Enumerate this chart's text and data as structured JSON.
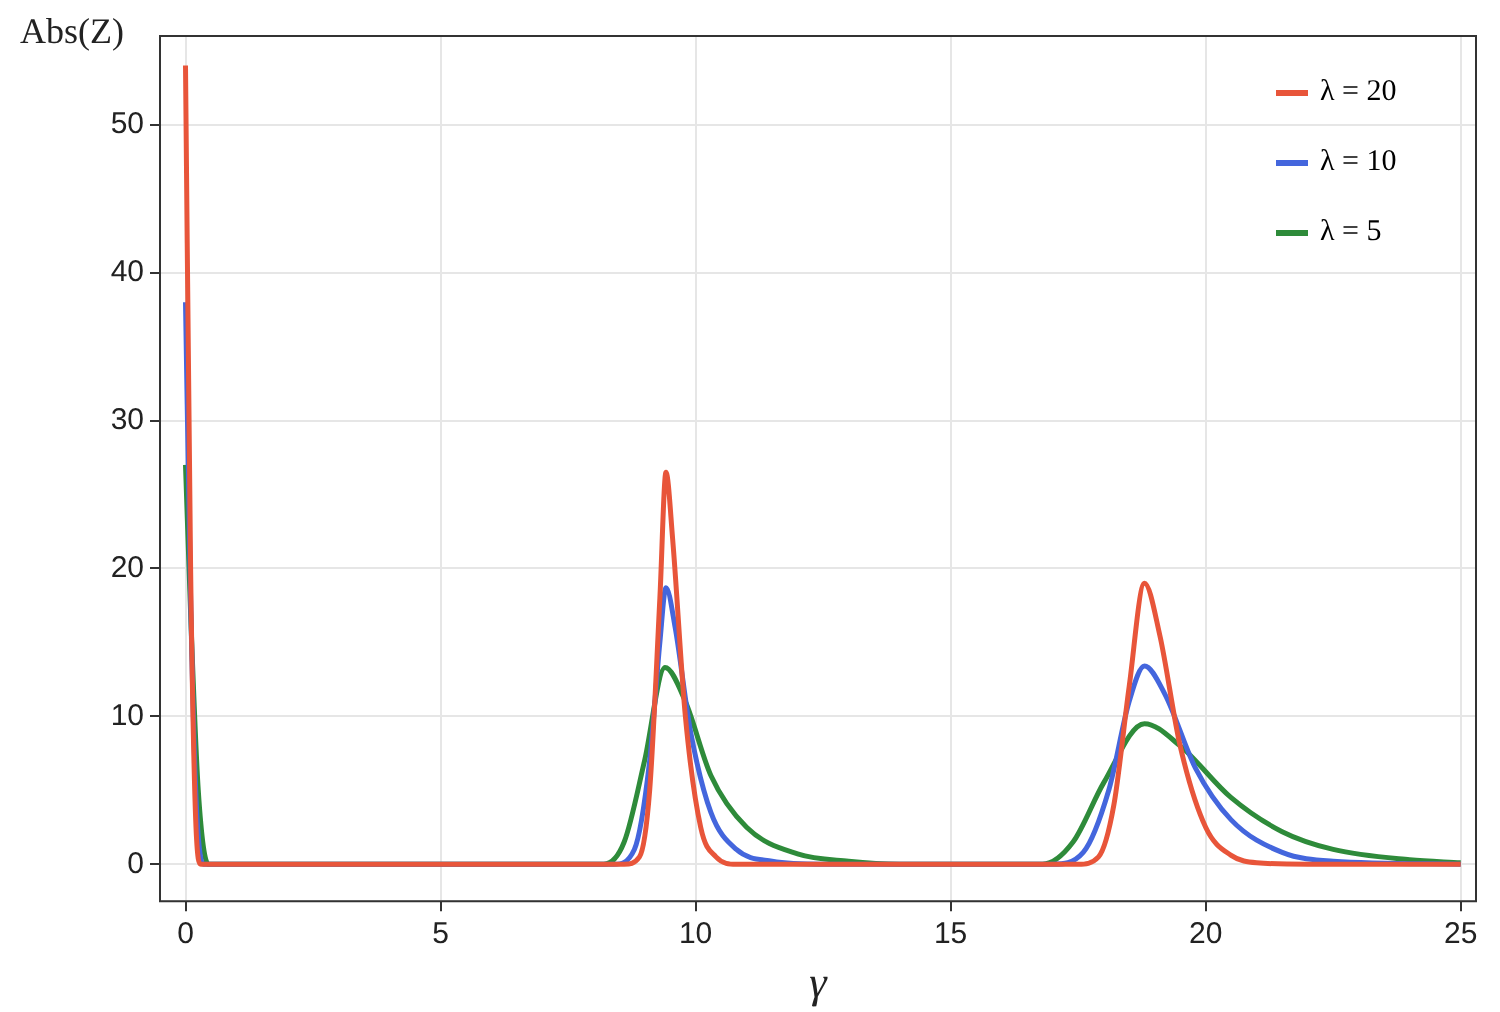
{
  "chart_data": {
    "type": "line",
    "xlabel": "γ",
    "ylabel": "Abs(Z)",
    "xlim": [
      -0.5,
      25.3
    ],
    "ylim": [
      -2.5,
      56
    ],
    "xticks": [
      0,
      5,
      10,
      15,
      20,
      25
    ],
    "yticks": [
      0,
      10,
      20,
      30,
      40,
      50
    ],
    "grid": true,
    "legend": "top right",
    "marker": "none",
    "line_style": "solid",
    "series": [
      {
        "name": "λ = 20",
        "color": "#e8553a",
        "x": [
          0,
          0.1,
          0.2,
          0.3,
          8.6,
          8.9,
          9.1,
          9.3,
          9.42,
          9.55,
          9.8,
          10.1,
          10.4,
          10.8,
          17.5,
          17.9,
          18.2,
          18.5,
          18.8,
          19.1,
          19.5,
          20,
          20.5,
          21,
          22,
          25
        ],
        "values": [
          54,
          20,
          3,
          0,
          0,
          0.5,
          5,
          18,
          26.5,
          22,
          10,
          2.5,
          0.5,
          0,
          0,
          0.5,
          4,
          12,
          19,
          15.5,
          8,
          2.5,
          0.6,
          0.1,
          0,
          0
        ]
      },
      {
        "name": "λ = 10",
        "color": "#4466dd",
        "x": [
          0,
          0.1,
          0.2,
          0.35,
          8.4,
          8.8,
          9.1,
          9.3,
          9.42,
          9.6,
          9.9,
          10.3,
          10.8,
          11.5,
          12.5,
          17,
          17.6,
          18.1,
          18.5,
          18.8,
          19.2,
          19.8,
          20.5,
          21.5,
          22.5,
          25
        ],
        "values": [
          38,
          18,
          5,
          0,
          0,
          1,
          7,
          15,
          18.7,
          16,
          9,
          3.5,
          1,
          0.2,
          0,
          0,
          0.8,
          5,
          11,
          13.4,
          11.5,
          6.5,
          3,
          0.8,
          0.2,
          0
        ]
      },
      {
        "name": "λ = 5",
        "color": "#2e8b3a",
        "x": [
          0,
          0.1,
          0.25,
          0.45,
          8.2,
          8.6,
          9,
          9.4,
          9.8,
          10.3,
          11,
          12,
          13,
          14,
          16.8,
          17.4,
          18,
          18.8,
          19.5,
          20.5,
          21.5,
          22.5,
          24,
          25
        ],
        "values": [
          27,
          17,
          5,
          0,
          0,
          1.5,
          7,
          13.3,
          11,
          6,
          2.5,
          0.7,
          0.2,
          0,
          0,
          1.5,
          5.5,
          9.5,
          8,
          4.5,
          2.2,
          1,
          0.3,
          0.1
        ]
      }
    ]
  }
}
